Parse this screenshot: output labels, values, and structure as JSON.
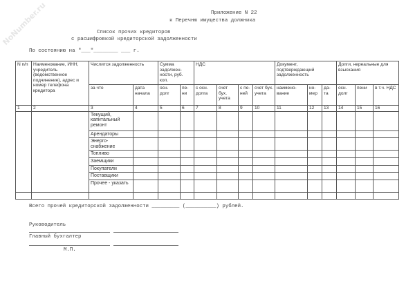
{
  "watermark": "NoNumber.ru",
  "header": {
    "appendix": "Приложение N 22",
    "appendix_sub": "к Перечню имущества должника",
    "title1": "Список прочих кредиторов",
    "title2": "с расшифровкой кредиторской задолженности",
    "as_of": "По состоянию на \"___\"________ ___ г."
  },
  "table": {
    "h_n": "N п/п",
    "h_name": "Наименование, ИНН, учредитель (ведомственное подчинение), адрес и номер телефона кредитора",
    "h_debt": "Числится задолженность",
    "h_sum": "Сумма задолжен-ности, руб. коп.",
    "h_vat": "НДС",
    "h_doc": "Документ, подтверждающий задолженность",
    "h_bad": "Долги, нереальные для взыскания",
    "sub": [
      "за что",
      "дата начала",
      "осн. долг",
      "пе-ни",
      "с осн. долга",
      "счет бух. учета",
      "с пе-ней",
      "счет бух. учета",
      "наимено-вание",
      "но-мер",
      "да-та",
      "осн. долг",
      "пени",
      "в т.ч. НДС"
    ],
    "numbers": [
      "1",
      "2",
      "3",
      "4",
      "5",
      "6",
      "7",
      "8",
      "9",
      "10",
      "11",
      "12",
      "13",
      "14",
      "15",
      "16"
    ],
    "rows": [
      "Текущий, капитальный ремонт",
      "Арендаторы",
      "Энерго-снабжение",
      "Топливо",
      "Заемщики",
      "Покупатели",
      "Поставщики",
      "Прочее - указать"
    ]
  },
  "footer": {
    "total": "Всего прочей кредиторской задолженности _________ (__________) рублей.",
    "head": "Руководитель",
    "accountant": "Главный бухгалтер",
    "stamp": "М.П."
  }
}
